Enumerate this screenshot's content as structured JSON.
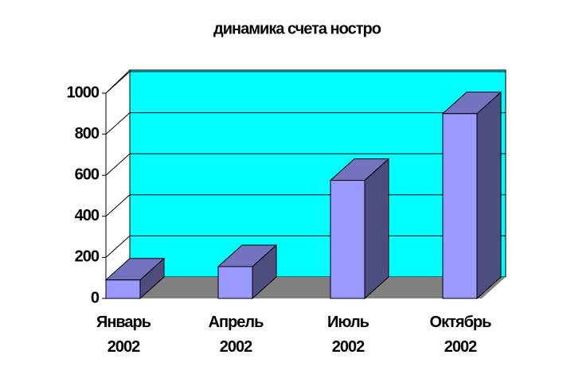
{
  "chart_data": {
    "type": "bar",
    "title": "динамика счета ностро",
    "categories": [
      "Январь 2002",
      "Апрель 2002",
      "Июль 2002",
      "Октябрь 2002"
    ],
    "values": [
      90,
      155,
      575,
      900
    ],
    "color": "#9999ff",
    "ylim": [
      0,
      1000
    ],
    "yticks": [
      0,
      200,
      400,
      600,
      800,
      1000
    ],
    "grid": true
  }
}
